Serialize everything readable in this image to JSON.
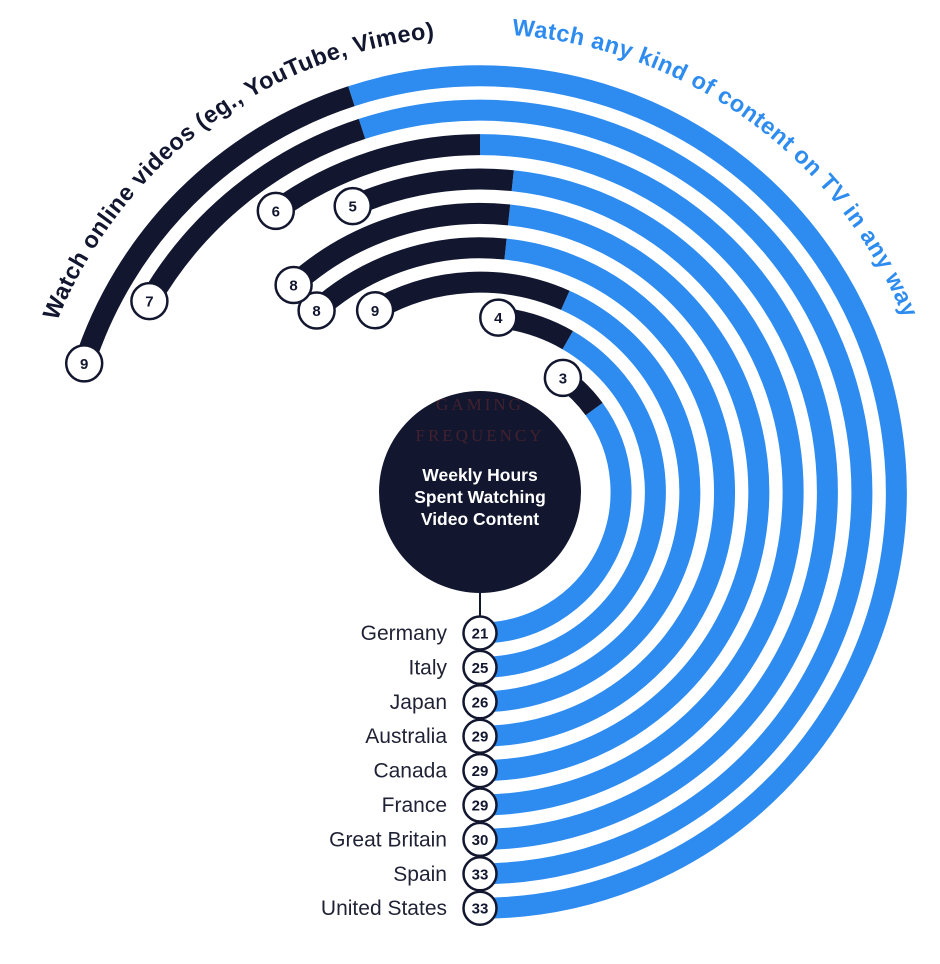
{
  "page": {
    "background": "#ffffff"
  },
  "colors": {
    "dark_navy": "#12172f",
    "blue": "#2e8cf0",
    "bubble_fill": "#ffffff",
    "watermark": "#53242e",
    "country_label": "#1f2235",
    "center_title": "#ffffff"
  },
  "chart_data": {
    "type": "bar",
    "variant": "concentric-radial-arcs",
    "title_lines": [
      "Weekly Hours",
      "Spent Watching",
      "Video Content"
    ],
    "watermark_lines": [
      "GAMING",
      "FREQUENCY"
    ],
    "categories": [
      "Germany",
      "Italy",
      "Japan",
      "Australia",
      "Canada",
      "France",
      "Great Britain",
      "Spain",
      "United States"
    ],
    "series": [
      {
        "name": "Watch any kind of content on TV in any way",
        "key": "tv",
        "color": "#2e8cf0",
        "values": [
          21,
          25,
          26,
          29,
          29,
          29,
          30,
          33,
          33
        ]
      },
      {
        "name": "Watch online videos (eg., YouTube, Vimeo)",
        "key": "online-videos",
        "color": "#12172f",
        "values": [
          3,
          4,
          9,
          8,
          8,
          5,
          6,
          7,
          9
        ]
      }
    ],
    "layout": {
      "grid": false,
      "legend_position": "curved-around-arcs",
      "start_angle_deg": -90,
      "degrees_per_unit": 6,
      "full_circle_units": 60,
      "inner_radius": 141,
      "ring_gap": 34.4,
      "arc_thickness": 21,
      "center": {
        "x": 480,
        "y": 492
      },
      "center_circle_radius": 101,
      "bubble_radius_bottom": 16.5,
      "bubble_radius_side": 18,
      "label_radius_online": 456,
      "label_radius_tv": 458
    }
  }
}
